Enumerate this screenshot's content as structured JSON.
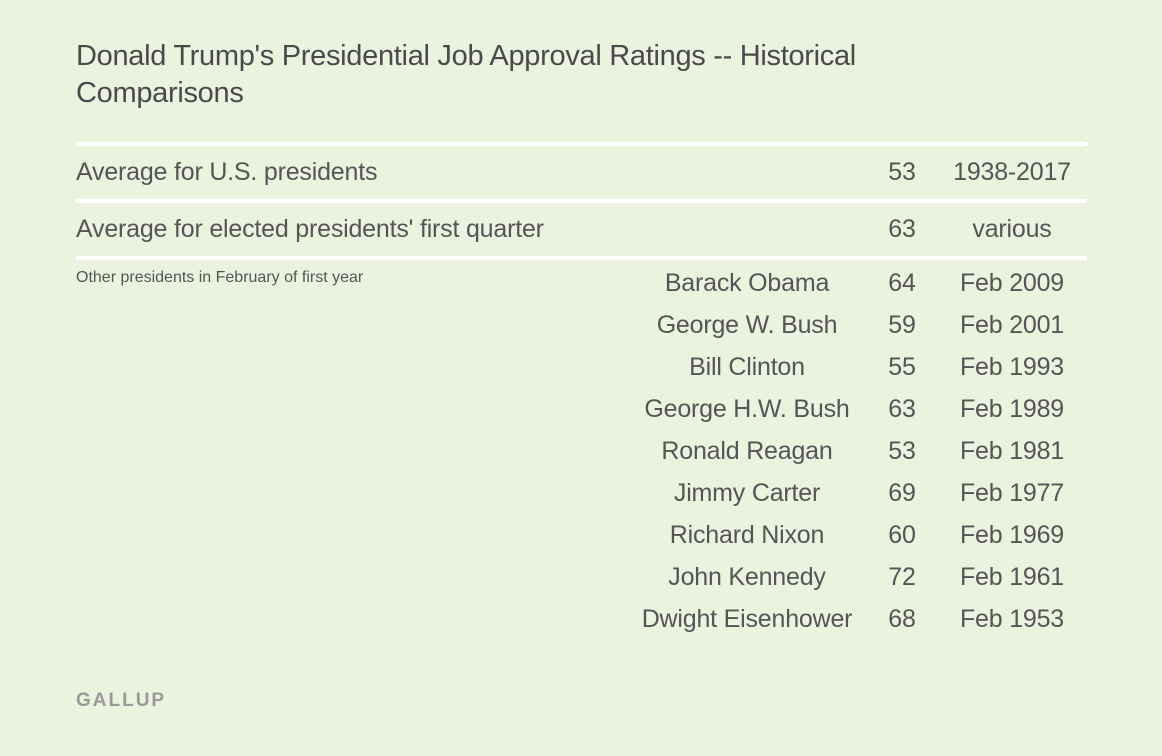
{
  "title": "Donald Trump's Presidential Job Approval Ratings -- Historical Comparisons",
  "rows": [
    {
      "label": "Average for U.S. presidents",
      "value": "53",
      "date": "1938-2017"
    },
    {
      "label": "Average for elected presidents' first quarter",
      "value": "63",
      "date": "various"
    }
  ],
  "group": {
    "label": "Other presidents in February of first year",
    "items": [
      {
        "name": "Barack Obama",
        "value": "64",
        "date": "Feb 2009"
      },
      {
        "name": "George W. Bush",
        "value": "59",
        "date": "Feb 2001"
      },
      {
        "name": "Bill Clinton",
        "value": "55",
        "date": "Feb 1993"
      },
      {
        "name": "George H.W. Bush",
        "value": "63",
        "date": "Feb 1989"
      },
      {
        "name": "Ronald Reagan",
        "value": "53",
        "date": "Feb 1981"
      },
      {
        "name": "Jimmy Carter",
        "value": "69",
        "date": "Feb 1977"
      },
      {
        "name": "Richard Nixon",
        "value": "60",
        "date": "Feb 1969"
      },
      {
        "name": "John Kennedy",
        "value": "72",
        "date": "Feb 1961"
      },
      {
        "name": "Dwight Eisenhower",
        "value": "68",
        "date": "Feb 1953"
      }
    ]
  },
  "footer": "GALLUP"
}
